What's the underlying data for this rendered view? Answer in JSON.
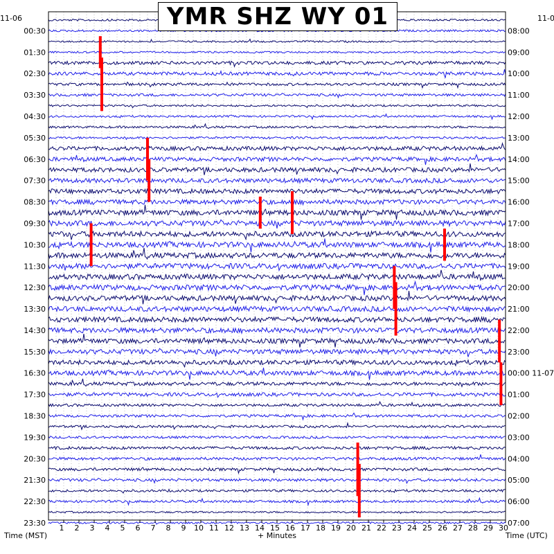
{
  "chart_data": {
    "type": "helicorder",
    "title": "YMR SHZ WY 01",
    "left_axis_label": "Time (MST)",
    "right_axis_label": "Time (UTC)",
    "x_axis_label": "+ Minutes",
    "left_date_label": "11-06",
    "right_date_label_top": "11-0",
    "right_date_label_rollover": "00:00 11-07",
    "x_ticks": [
      "1",
      "2",
      "3",
      "4",
      "5",
      "6",
      "7",
      "8",
      "9",
      "10",
      "11",
      "12",
      "13",
      "14",
      "15",
      "16",
      "17",
      "18",
      "19",
      "20",
      "21",
      "22",
      "23",
      "24",
      "25",
      "26",
      "27",
      "28",
      "29",
      "30"
    ],
    "x_range": [
      0,
      30
    ],
    "trace_count": 48,
    "left_time_labels": [
      "00:30",
      "01:30",
      "02:30",
      "03:30",
      "04:30",
      "05:30",
      "06:30",
      "07:30",
      "08:30",
      "09:30",
      "10:30",
      "11:30",
      "12:30",
      "13:30",
      "14:30",
      "15:30",
      "16:30",
      "17:30",
      "18:30",
      "19:30",
      "20:30",
      "21:30",
      "22:30",
      "23:30"
    ],
    "right_time_labels": [
      "08:00",
      "09:00",
      "10:00",
      "11:00",
      "12:00",
      "13:00",
      "14:00",
      "15:00",
      "16:00",
      "17:00",
      "18:00",
      "19:00",
      "20:00",
      "21:00",
      "22:00",
      "23:00",
      "00:00 11-07",
      "01:00",
      "02:00",
      "03:00",
      "04:00",
      "05:00",
      "06:00",
      "07:00"
    ],
    "trace_colors": [
      "#0a0a6e",
      "#1f1fe8"
    ],
    "clip_color": "#ff0000",
    "grid": true,
    "activity_by_hour": [
      0.25,
      0.2,
      0.55,
      0.4,
      0.25,
      0.3,
      0.7,
      0.8,
      0.85,
      1.0,
      1.0,
      1.0,
      1.0,
      0.95,
      0.95,
      0.9,
      0.85,
      0.6,
      0.4,
      0.35,
      0.45,
      0.45,
      0.35,
      0.2
    ],
    "events": [
      {
        "trace": 3,
        "minute": 3.4,
        "amp": 3
      },
      {
        "trace": 6,
        "minute": 3.5,
        "amp": 5
      },
      {
        "trace": 13,
        "minute": 6.5,
        "amp": 4
      },
      {
        "trace": 15,
        "minute": 6.6,
        "amp": 4
      },
      {
        "trace": 18,
        "minute": 16.0,
        "amp": 4
      },
      {
        "trace": 18,
        "minute": 13.9,
        "amp": 3
      },
      {
        "trace": 21,
        "minute": 2.8,
        "amp": 4
      },
      {
        "trace": 21,
        "minute": 26.0,
        "amp": 3
      },
      {
        "trace": 25,
        "minute": 22.7,
        "amp": 4
      },
      {
        "trace": 27,
        "minute": 22.8,
        "amp": 5
      },
      {
        "trace": 30,
        "minute": 29.6,
        "amp": 4
      },
      {
        "trace": 34,
        "minute": 29.7,
        "amp": 4
      },
      {
        "trace": 42,
        "minute": 20.3,
        "amp": 5
      },
      {
        "trace": 44,
        "minute": 20.4,
        "amp": 5
      }
    ]
  }
}
